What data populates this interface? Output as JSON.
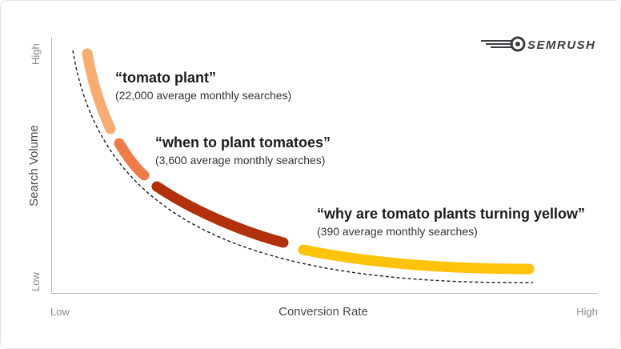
{
  "brand": {
    "name": "SEMRUSH",
    "logo_icon": "semrush-fireball-icon"
  },
  "chart_data": {
    "type": "line",
    "xlabel": "Conversion Rate",
    "ylabel": "Search Volume",
    "x_ticks": [
      "Low",
      "High"
    ],
    "y_ticks": [
      "Low",
      "High"
    ],
    "grid": false,
    "series": [
      {
        "name": "tomato plant",
        "label": "“tomato plant”",
        "sublabel": "(22,000 average monthly searches)",
        "color": "#f9ac6f"
      },
      {
        "name": "when to plant tomatoes",
        "label": "“when to plant tomatoes”",
        "sublabel": "(3,600 average monthly searches)",
        "color": "#f17b48"
      },
      {
        "name": "mid-tail segment",
        "label": "",
        "sublabel": "",
        "color": "#b2300b"
      },
      {
        "name": "why are tomato plants turning yellow",
        "label": "“why are tomato plants turning yellow”",
        "sublabel": "(390 average monthly searches)",
        "color": "#fec30a"
      }
    ],
    "reference_curve": {
      "style": "dashed",
      "color": "#1c1c1e"
    }
  }
}
